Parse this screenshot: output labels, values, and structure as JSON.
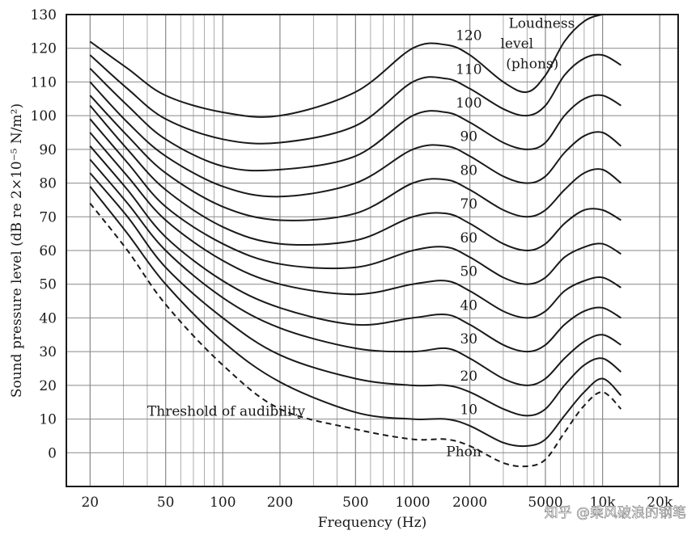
{
  "chart_data": {
    "type": "line",
    "title": "",
    "xlabel": "Frequency (Hz)",
    "ylabel": "Sound pressure level (dB re 2×10⁻⁵ N/m²)",
    "xscale": "log",
    "xlim": [
      15,
      25000
    ],
    "ylim": [
      -10,
      130
    ],
    "x_ticks": [
      20,
      50,
      100,
      200,
      500,
      1000,
      2000,
      5000,
      10000,
      20000
    ],
    "x_tick_labels": [
      "20",
      "50",
      "100",
      "200",
      "500",
      "1000",
      "2000",
      "5000",
      "10k",
      "20k"
    ],
    "y_ticks": [
      0,
      10,
      20,
      30,
      40,
      50,
      60,
      70,
      80,
      90,
      100,
      110,
      120,
      130
    ],
    "y_tick_labels": [
      "0",
      "10",
      "20",
      "30",
      "40",
      "50",
      "60",
      "70",
      "80",
      "90",
      "100",
      "110",
      "120",
      "130"
    ],
    "grid": true,
    "x": [
      20,
      31.5,
      50,
      100,
      200,
      500,
      1000,
      1500,
      2000,
      3000,
      4000,
      5000,
      6300,
      8000,
      10000,
      12500
    ],
    "series": [
      {
        "name": "Threshold of audibility",
        "style": "dashed",
        "values": [
          74,
          60,
          44,
          26,
          13,
          7,
          4,
          4,
          2,
          -3,
          -4,
          -2,
          6,
          14,
          18,
          13
        ]
      },
      {
        "name": "10",
        "values": [
          79,
          65,
          50,
          33,
          21,
          12,
          10,
          10,
          8,
          3,
          2,
          4,
          11,
          18,
          22,
          17
        ]
      },
      {
        "name": "20",
        "values": [
          83,
          70,
          55,
          40,
          29,
          22,
          20,
          20,
          18,
          13,
          11,
          13,
          20,
          26,
          28,
          24
        ]
      },
      {
        "name": "30",
        "values": [
          87,
          74,
          60,
          46,
          37,
          31,
          30,
          31,
          28,
          22,
          20,
          22,
          28,
          33,
          35,
          32
        ]
      },
      {
        "name": "40",
        "values": [
          91,
          78,
          64,
          51,
          43,
          38,
          40,
          41,
          38,
          32,
          30,
          32,
          38,
          42,
          43,
          40
        ]
      },
      {
        "name": "50",
        "values": [
          95,
          82,
          69,
          57,
          50,
          47,
          50,
          51,
          48,
          42,
          40,
          42,
          48,
          51,
          52,
          49
        ]
      },
      {
        "name": "60",
        "values": [
          99,
          86,
          73,
          62,
          56,
          55,
          60,
          61,
          58,
          52,
          50,
          52,
          58,
          61,
          62,
          59
        ]
      },
      {
        "name": "70",
        "values": [
          103,
          90,
          78,
          67,
          62,
          63,
          70,
          71,
          68,
          62,
          60,
          62,
          68,
          72,
          72,
          69
        ]
      },
      {
        "name": "80",
        "values": [
          106,
          94,
          83,
          73,
          69,
          71,
          80,
          81,
          78,
          72,
          70,
          72,
          78,
          83,
          84,
          80
        ]
      },
      {
        "name": "90",
        "values": [
          110,
          98,
          88,
          79,
          76,
          80,
          90,
          91,
          88,
          82,
          80,
          82,
          89,
          94,
          95,
          91
        ]
      },
      {
        "name": "100",
        "values": [
          114,
          103,
          93,
          85,
          84,
          88,
          100,
          101,
          98,
          92,
          90,
          92,
          100,
          105,
          106,
          103
        ]
      },
      {
        "name": "110",
        "values": [
          118,
          108,
          99,
          93,
          92,
          97,
          110,
          111,
          108,
          102,
          100,
          103,
          112,
          117,
          118,
          115
        ]
      },
      {
        "name": "120",
        "values": [
          122,
          114,
          106,
          101,
          100,
          107,
          120,
          121,
          118,
          110,
          107,
          112,
          122,
          128,
          130,
          130
        ]
      }
    ],
    "annotations": [
      {
        "text": "Loudness",
        "x": 3200,
        "y": 126
      },
      {
        "text": "level",
        "x": 2900,
        "y": 120
      },
      {
        "text": "(phons)",
        "x": 3100,
        "y": 114
      },
      {
        "text": "Threshold of audibility",
        "x": 40,
        "y": 11
      },
      {
        "text": "Phon",
        "x": 1500,
        "y": -1
      }
    ],
    "watermark": "知乎 @乘风破浪的钢笔",
    "colors": {
      "line": "#1a1a1a",
      "grid": "#888888",
      "background": "#ffffff"
    }
  }
}
